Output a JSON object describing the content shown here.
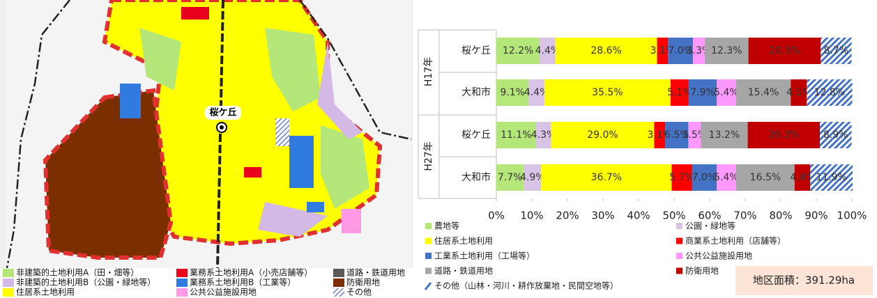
{
  "map": {
    "place_label": "桜ケ丘",
    "legend": [
      {
        "label": "非建築的土地利用A（田・畑等）",
        "color": "#b4e67a"
      },
      {
        "label": "非建築的土地利用B（公園・緑地等）",
        "color": "#d4b8e6"
      },
      {
        "label": "住居系土地利用",
        "color": "#ffff00"
      },
      {
        "label": "業務系土地利用A（小売店舗等）",
        "color": "#e8001c"
      },
      {
        "label": "業務系土地利用B（工業等）",
        "color": "#2f7be0"
      },
      {
        "label": "公共公益施設用地",
        "color": "#ff99e6"
      },
      {
        "label": "道路・鉄道用地",
        "color": "#595959"
      },
      {
        "label": "防衛用地",
        "color": "#7b2e00"
      },
      {
        "label": "その他",
        "color": "#6a7fd0",
        "hatch": true
      }
    ]
  },
  "chart_data": {
    "type": "stacked_barh",
    "groups": [
      {
        "label": "H17年",
        "categories": [
          0,
          1
        ]
      },
      {
        "label": "H27年",
        "categories": [
          2,
          3
        ]
      }
    ],
    "categories": [
      "桜ケ丘",
      "大和市",
      "桜ケ丘",
      "大和市"
    ],
    "series": [
      {
        "name": "農地等",
        "color": "#b4e67a",
        "values": [
          12.2,
          9.1,
          11.1,
          7.7
        ],
        "value_labels": [
          "12.2%",
          "9.1%",
          "11.1%",
          "7.7%"
        ]
      },
      {
        "name": "公園・緑地等",
        "color": "#d9c3e6",
        "values": [
          4.4,
          4.4,
          4.3,
          4.9
        ],
        "value_labels": [
          "4.4%",
          "4.4%",
          "4.3%",
          "4.9%"
        ]
      },
      {
        "name": "住居系土地利用",
        "color": "#ffff00",
        "values": [
          28.6,
          35.5,
          29.0,
          36.7
        ],
        "value_labels": [
          "28.6%",
          "35.5%",
          "29.0%",
          "36.7%"
        ]
      },
      {
        "name": "商業系土地利用（店舗等）",
        "color": "#ff0000",
        "values": [
          3.1,
          5.1,
          3.1,
          5.7
        ],
        "value_labels": [
          "3.1%",
          "5.1%",
          "3.1%",
          "5.7%"
        ]
      },
      {
        "name": "工業系土地利用（工場等）",
        "color": "#4472c4",
        "values": [
          7.0,
          7.9,
          6.5,
          7.0
        ],
        "value_labels": [
          "7.0%",
          "7.9%",
          "6.5%",
          "7.0%"
        ]
      },
      {
        "name": "公共公益施設用地",
        "color": "#ff99ff",
        "values": [
          3.3,
          5.4,
          3.5,
          5.4
        ],
        "value_labels": [
          "3.3%",
          "5.4%",
          "3.5%",
          "5.4%"
        ]
      },
      {
        "name": "道路・鉄道用地",
        "color": "#a6a6a6",
        "values": [
          12.3,
          15.4,
          13.2,
          16.5
        ],
        "value_labels": [
          "12.3%",
          "15.4%",
          "13.2%",
          "16.5%"
        ]
      },
      {
        "name": "防衛用地",
        "color": "#c00000",
        "values": [
          20.3,
          4.5,
          20.3,
          4.4
        ],
        "value_labels": [
          "20.3%",
          "4.5%",
          "20.3%",
          "4.4%"
        ]
      },
      {
        "name": "その他（山林・河川・耕作放棄地・民間空地等）",
        "color": "#4472c4",
        "hatch": true,
        "values": [
          8.7,
          12.8,
          8.9,
          11.9
        ],
        "value_labels": [
          "8.7%",
          "12.8%",
          "8.9%",
          "11.9%"
        ]
      }
    ],
    "xlim": [
      0,
      100
    ],
    "xticks": [
      {
        "value": 0,
        "label": "0%"
      },
      {
        "value": 10,
        "label": "10%"
      },
      {
        "value": 20,
        "label": "20%"
      },
      {
        "value": 30,
        "label": "30%"
      },
      {
        "value": 40,
        "label": "40%"
      },
      {
        "value": 50,
        "label": "50%"
      },
      {
        "value": 60,
        "label": "60%"
      },
      {
        "value": 70,
        "label": "70%"
      },
      {
        "value": 80,
        "label": "80%"
      },
      {
        "value": 90,
        "label": "90%"
      },
      {
        "value": 100,
        "label": "100%"
      }
    ],
    "annotation": "地区面積：391.29ha"
  }
}
